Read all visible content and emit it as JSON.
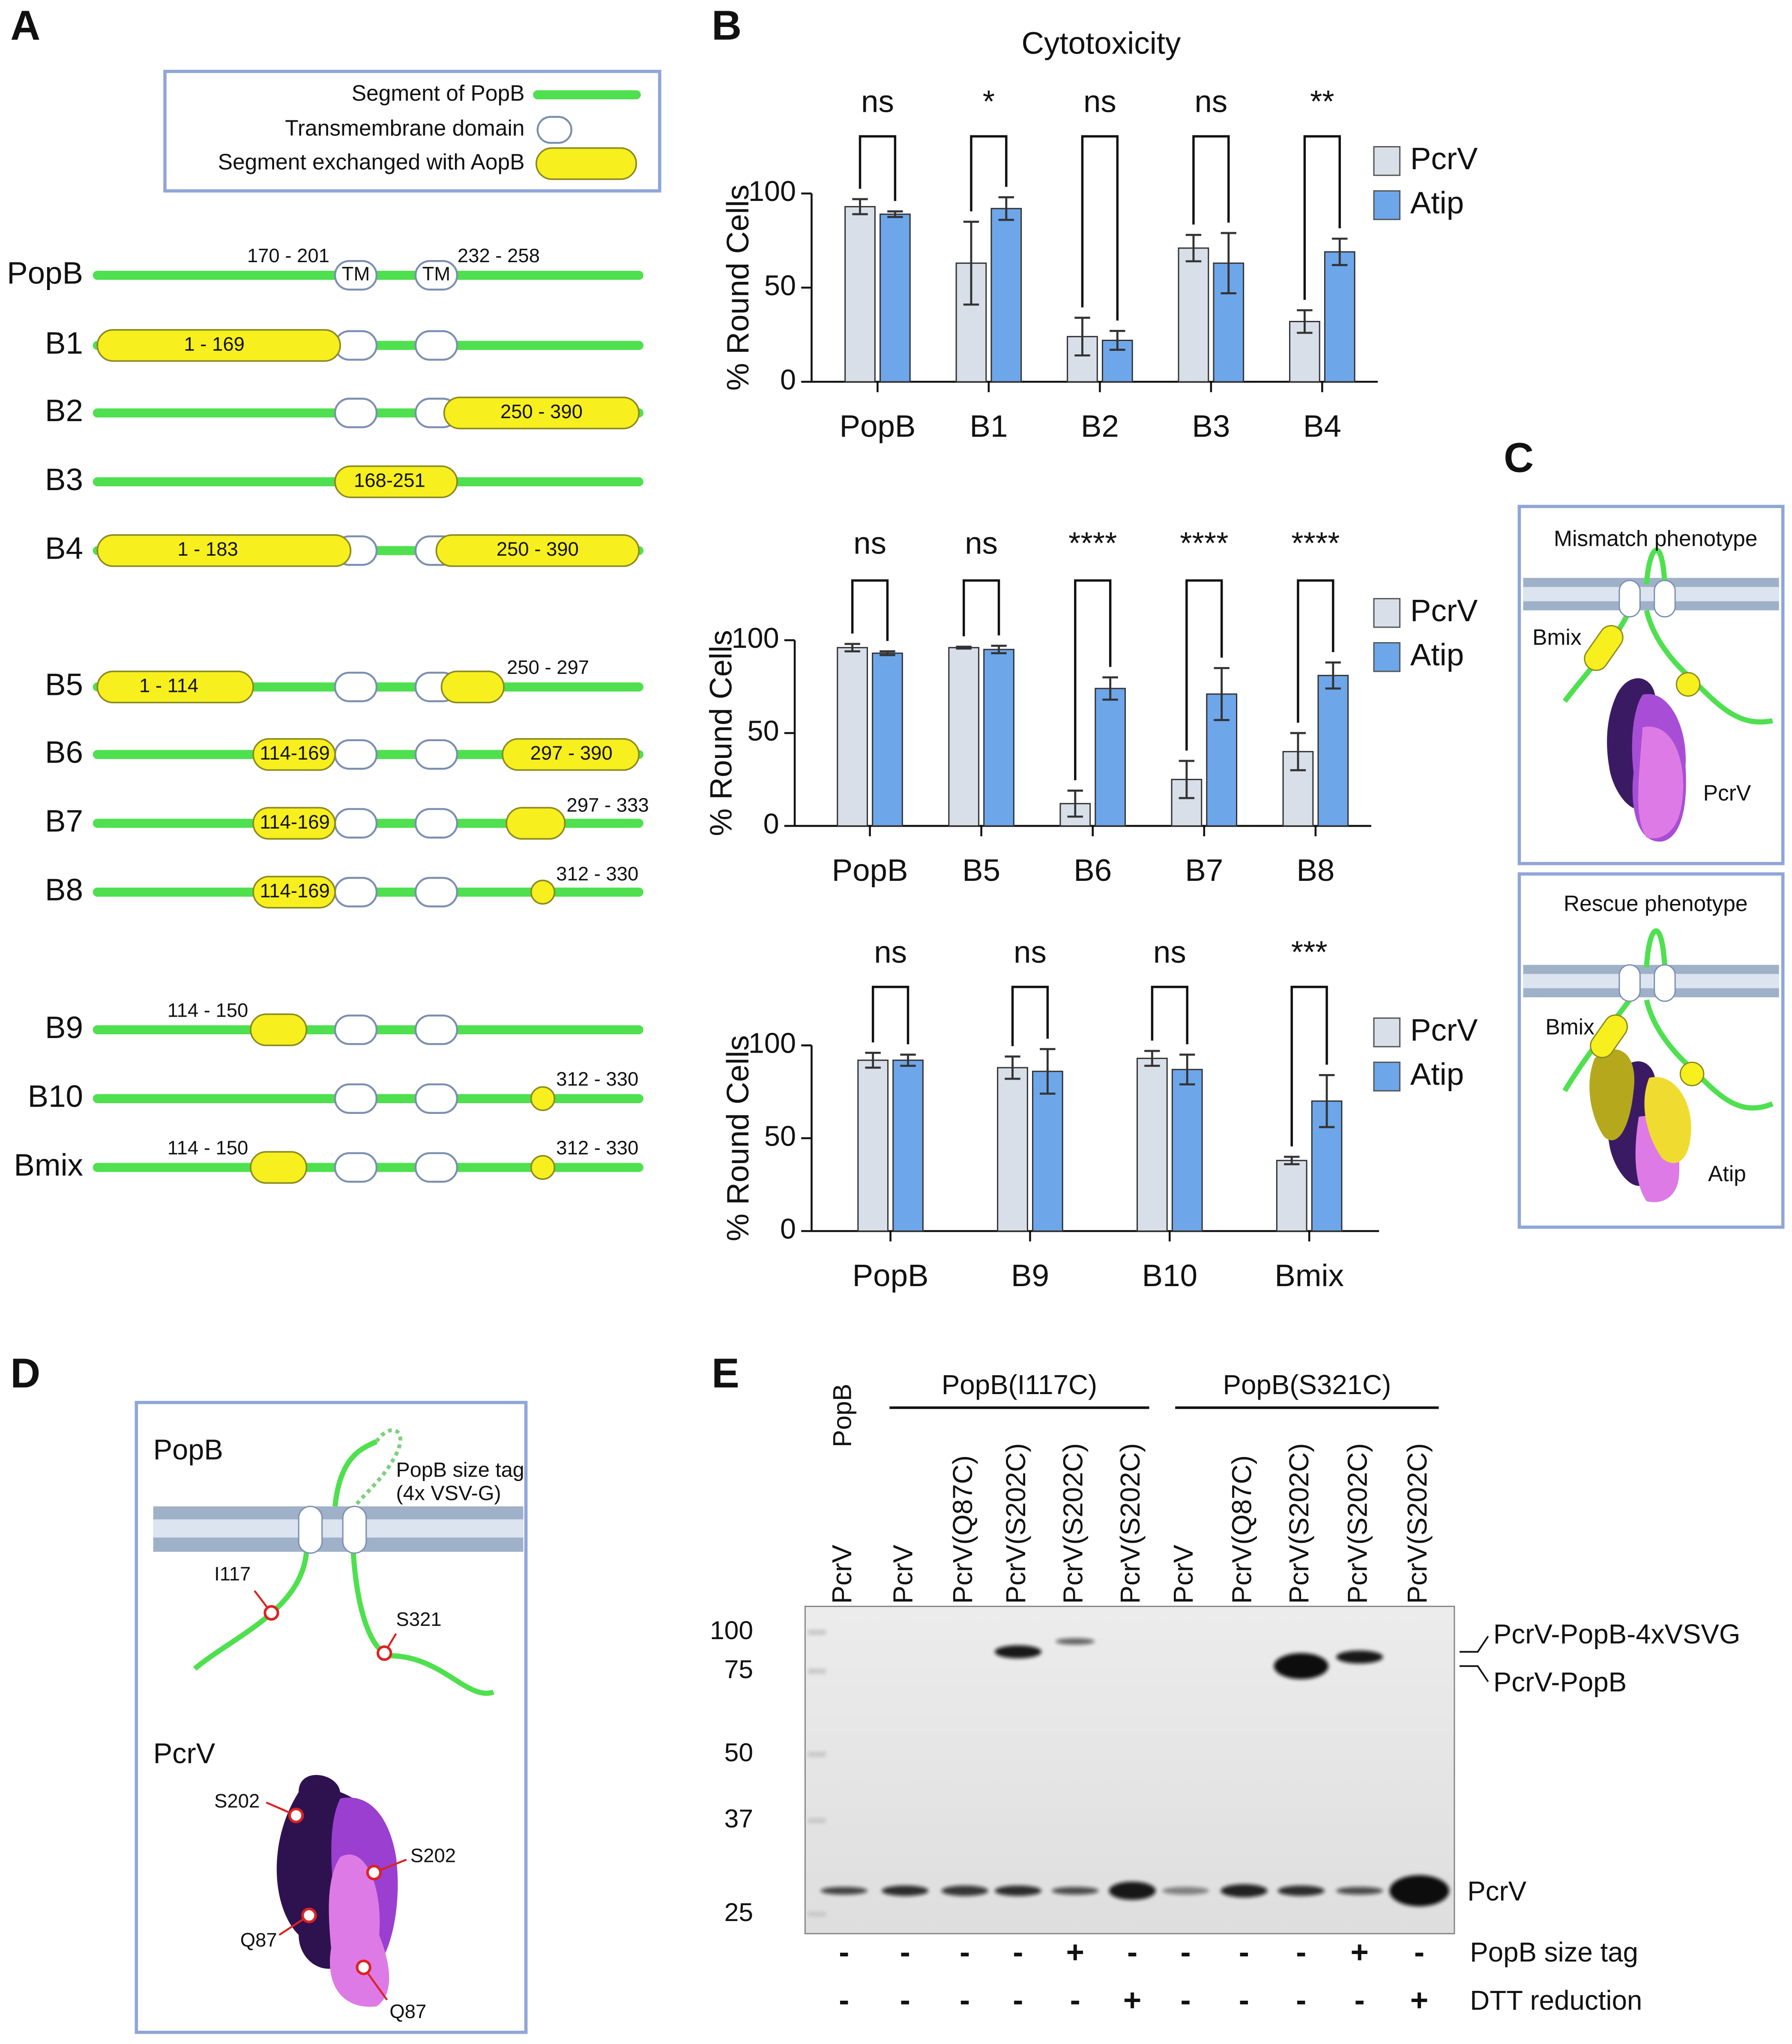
{
  "panel_labels": [
    "A",
    "B",
    "C",
    "D",
    "E"
  ],
  "panel_a": {
    "legend": [
      "Segment of PopB",
      "Transmembrane domain",
      "Segment exchanged with AopB"
    ],
    "constructs": [
      {
        "name": "PopB",
        "labels": [
          "170 - 201",
          "TM",
          "TM",
          "232 - 258"
        ]
      },
      {
        "name": "B1",
        "labels": [
          "1 - 169"
        ]
      },
      {
        "name": "B2",
        "labels": [
          "250 - 390"
        ]
      },
      {
        "name": "B3",
        "labels": [
          "168-251"
        ]
      },
      {
        "name": "B4",
        "labels": [
          "1 - 183",
          "250 - 390"
        ]
      },
      {
        "name": "B5",
        "labels": [
          "1 - 114",
          "250 - 297"
        ]
      },
      {
        "name": "B6",
        "labels": [
          "114-169",
          "297 - 390"
        ]
      },
      {
        "name": "B7",
        "labels": [
          "114-169",
          "297 - 333"
        ]
      },
      {
        "name": "B8",
        "labels": [
          "114-169",
          "312 - 330"
        ]
      },
      {
        "name": "B9",
        "labels": [
          "114 - 150"
        ]
      },
      {
        "name": "B10",
        "labels": [
          "312 - 330"
        ]
      },
      {
        "name": "Bmix",
        "labels": [
          "114 - 150",
          "312 - 330"
        ]
      }
    ]
  },
  "chart_data": [
    {
      "type": "bar",
      "title": "Cytotoxicity",
      "y_label": "% Round Cells",
      "categories": [
        "PopB",
        "B1",
        "B2",
        "B3",
        "B4"
      ],
      "series": [
        {
          "name": "PcrV",
          "color": "#d8dfe8",
          "values": [
            93,
            63,
            24,
            71,
            32
          ],
          "errors": [
            4,
            22,
            10,
            7,
            6
          ]
        },
        {
          "name": "Atip",
          "color": "#6ea6ea",
          "values": [
            89,
            92,
            22,
            63,
            69
          ],
          "errors": [
            1.5,
            6,
            5,
            16,
            7
          ]
        }
      ],
      "significance": [
        "ns",
        "*",
        "ns",
        "ns",
        "**"
      ],
      "ylim": [
        0,
        100
      ],
      "yticks": [
        0,
        50,
        100
      ]
    },
    {
      "type": "bar",
      "y_label": "% Round Cells",
      "categories": [
        "PopB",
        "B5",
        "B6",
        "B7",
        "B8"
      ],
      "series": [
        {
          "name": "PcrV",
          "color": "#d8dfe8",
          "values": [
            96,
            96,
            12,
            25,
            40
          ],
          "errors": [
            2,
            0.5,
            7,
            10,
            10
          ]
        },
        {
          "name": "Atip",
          "color": "#6ea6ea",
          "values": [
            93,
            95,
            74,
            71,
            81
          ],
          "errors": [
            1,
            2,
            6,
            14,
            7
          ]
        }
      ],
      "significance": [
        "ns",
        "ns",
        "****",
        "****",
        "****"
      ],
      "ylim": [
        0,
        100
      ],
      "yticks": [
        0,
        50,
        100
      ]
    },
    {
      "type": "bar",
      "y_label": "% Round Cells",
      "categories": [
        "PopB",
        "B9",
        "B10",
        "Bmix"
      ],
      "series": [
        {
          "name": "PcrV",
          "color": "#d8dfe8",
          "values": [
            92,
            88,
            93,
            38
          ],
          "errors": [
            4,
            6,
            4,
            2
          ]
        },
        {
          "name": "Atip",
          "color": "#6ea6ea",
          "values": [
            92,
            86,
            87,
            70
          ],
          "errors": [
            3,
            12,
            8,
            14
          ]
        }
      ],
      "significance": [
        "ns",
        "ns",
        "ns",
        "***"
      ],
      "ylim": [
        0,
        100
      ],
      "yticks": [
        0,
        50,
        100
      ]
    }
  ],
  "panel_c": {
    "mismatch": {
      "title": "Mismatch phenotype",
      "labels": [
        "Bmix",
        "PcrV"
      ]
    },
    "rescue": {
      "title": "Rescue phenotype",
      "labels": [
        "Bmix",
        "Atip"
      ]
    }
  },
  "panel_d": {
    "popb": {
      "title": "PopB",
      "tag": [
        "PopB size tag",
        "(4x VSV-G)"
      ],
      "sites": [
        "I117",
        "S321"
      ]
    },
    "pcrv": {
      "title": "PcrV",
      "sites": [
        "S202",
        "S202",
        "Q87",
        "Q87"
      ]
    }
  },
  "panel_e": {
    "single_lane_label": "PopB",
    "groups": [
      "PopB(I117C)",
      "PopB(S321C)"
    ],
    "lanes": [
      "PcrV",
      "PcrV",
      "PcrV(Q87C)",
      "PcrV(S202C)",
      "PcrV(S202C)",
      "PcrV(S202C)",
      "PcrV",
      "PcrV(Q87C)",
      "PcrV(S202C)",
      "PcrV(S202C)",
      "PcrV(S202C)"
    ],
    "mw_markers": [
      100,
      75,
      50,
      37,
      25
    ],
    "band_labels": [
      "PcrV-PopB-4xVSVG",
      "PcrV-PopB",
      "PcrV"
    ],
    "conditions": [
      {
        "label": "PopB size tag",
        "signs": [
          "-",
          "-",
          "-",
          "-",
          "+",
          "-",
          "-",
          "-",
          "-",
          "+",
          "-"
        ]
      },
      {
        "label": "DTT reduction",
        "signs": [
          "-",
          "-",
          "-",
          "-",
          "-",
          "+",
          "-",
          "-",
          "-",
          "-",
          "+"
        ]
      }
    ],
    "highlight": {
      "sign": "+",
      "color": "#e8231b"
    }
  }
}
